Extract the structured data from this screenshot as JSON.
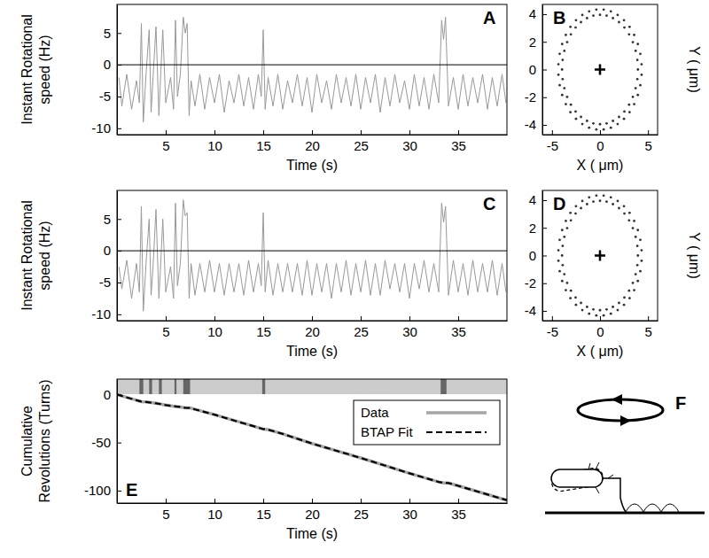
{
  "chart_data": [
    {
      "type": "line",
      "title": "A",
      "xlabel": "Time (s)",
      "ylabel": [
        "Instant Rotational",
        "speed (Hz)"
      ],
      "xlim": [
        0,
        40
      ],
      "xticks": [
        5,
        10,
        15,
        20,
        25,
        30,
        35
      ],
      "ylim": [
        -11,
        9.5
      ],
      "yticks": [
        -10,
        -5,
        0,
        5
      ],
      "hline": 0,
      "x": [
        0.2,
        0.5,
        1,
        1.5,
        2,
        2.3,
        2.5,
        2.7,
        3,
        3.3,
        3.5,
        3.7,
        4,
        4.3,
        4.5,
        4.7,
        5,
        5.5,
        5.8,
        6,
        6.2,
        6.5,
        6.8,
        7,
        7.2,
        7.4,
        7.6,
        8,
        8.5,
        9,
        9.5,
        10,
        10.5,
        11,
        11.5,
        12,
        12.5,
        13,
        13.5,
        14,
        14.5,
        14.8,
        15,
        15.2,
        15.5,
        16,
        16.5,
        17,
        17.5,
        18,
        18.5,
        19,
        19.5,
        20,
        20.5,
        21,
        21.5,
        22,
        22.5,
        23,
        23.5,
        24,
        24.5,
        25,
        25.5,
        26,
        26.5,
        27,
        27.5,
        28,
        28.5,
        29,
        29.5,
        30,
        30.5,
        31,
        31.5,
        32,
        32.5,
        33,
        33.3,
        33.5,
        33.7,
        34,
        34.5,
        35,
        35.5,
        36,
        36.5,
        37,
        37.5,
        38,
        38.5,
        39,
        39.5,
        39.9
      ],
      "series": [
        {
          "color": "#999999",
          "values": [
            -2,
            -6.5,
            -1.5,
            -7,
            -2.5,
            -6,
            6.5,
            -9,
            -1,
            5.5,
            -7.5,
            -2,
            6,
            -8,
            -1,
            5.5,
            -6,
            -2,
            -7,
            7,
            -5,
            -1.5,
            7.5,
            5,
            6.5,
            -8,
            -2.5,
            -6.5,
            -1.5,
            -7,
            -2,
            -6,
            -1.5,
            -7.5,
            -2.5,
            -6,
            -1.5,
            -6.5,
            -2,
            -7,
            -1.5,
            -5,
            5.5,
            -7,
            -2,
            -6.5,
            -1.5,
            -7,
            -2.5,
            -6,
            -1.5,
            -6.5,
            -2,
            -7.5,
            -1.5,
            -6,
            -2.5,
            -7,
            -1.5,
            -6,
            -2,
            -6.5,
            -1.5,
            -7,
            -2,
            -6,
            -1.5,
            -7.5,
            -2,
            -6.5,
            -1.5,
            -6,
            -2.5,
            -7,
            -1.5,
            -6.5,
            -2,
            -7,
            -1.5,
            -6,
            7,
            4,
            7.5,
            -6.5,
            -2,
            -7,
            -1.5,
            -6.5,
            -2,
            -6,
            -1.5,
            -7,
            -2,
            -6.5,
            -1.5,
            -6
          ]
        }
      ]
    },
    {
      "type": "scatter",
      "title": "B",
      "xlabel": "X ( μm)",
      "ylabel": "Y ( μm)",
      "marker": "dot",
      "color": "#333333",
      "xlim": [
        -6,
        6
      ],
      "xticks": [
        -5,
        0,
        5
      ],
      "ylim": [
        -4.7,
        4.7
      ],
      "yticks": [
        -4,
        -2,
        0,
        2,
        4
      ],
      "center": [
        0,
        0
      ],
      "x": [
        3.95,
        3.89,
        3.71,
        3.42,
        3.03,
        2.54,
        1.98,
        1.35,
        0.69,
        0,
        -0.69,
        -1.35,
        -1.98,
        -2.54,
        -3.03,
        -3.42,
        -3.71,
        -3.89,
        -3.95,
        -3.89,
        -3.71,
        -3.42,
        -3.03,
        -2.54,
        -1.98,
        -1.35,
        -0.69,
        0,
        0.69,
        1.35,
        1.98,
        2.54,
        3.03,
        3.42,
        3.71,
        3.89,
        4.33,
        4.2,
        3.94,
        3.56,
        3.08,
        2.5,
        1.84,
        1.13,
        0.38,
        -0.38,
        -1.13,
        -1.84,
        -2.5,
        -3.08,
        -3.56,
        -3.94,
        -4.2,
        -4.33,
        -4.33,
        -4.2,
        -3.94,
        -3.56,
        -3.08,
        -2.5,
        -1.84,
        -1.13,
        -0.38,
        0.38,
        1.13,
        1.84,
        2.5,
        3.08,
        3.56,
        3.94,
        4.2,
        4.33
      ],
      "values": [
        0,
        0.69,
        1.35,
        1.98,
        2.54,
        3.03,
        3.42,
        3.71,
        3.89,
        3.95,
        3.89,
        3.71,
        3.42,
        3.03,
        2.54,
        1.98,
        1.35,
        0.69,
        0,
        -0.69,
        -1.35,
        -1.98,
        -2.54,
        -3.03,
        -3.42,
        -3.71,
        -3.89,
        -3.95,
        -3.89,
        -3.71,
        -3.42,
        -3.03,
        -2.54,
        -1.98,
        -1.35,
        -0.69,
        0.38,
        1.13,
        1.84,
        2.5,
        3.08,
        3.56,
        3.94,
        4.2,
        4.33,
        4.33,
        4.2,
        3.94,
        3.56,
        3.08,
        2.5,
        1.84,
        1.13,
        0.38,
        -0.38,
        -1.13,
        -1.84,
        -2.5,
        -3.08,
        -3.56,
        -3.94,
        -4.2,
        -4.33,
        -4.33,
        -4.2,
        -3.94,
        -3.56,
        -3.08,
        -2.5,
        -1.84,
        -1.13,
        -0.38
      ]
    },
    {
      "type": "line",
      "title": "C",
      "xlabel": "Time (s)",
      "ylabel": [
        "Instant Rotational",
        "speed (Hz)"
      ],
      "xlim": [
        0,
        40
      ],
      "xticks": [
        5,
        10,
        15,
        20,
        25,
        30,
        35
      ],
      "ylim": [
        -11,
        9.5
      ],
      "yticks": [
        -10,
        -5,
        0,
        5
      ],
      "hline": 0,
      "x": [
        0.2,
        0.5,
        1,
        1.5,
        2,
        2.3,
        2.5,
        2.7,
        3,
        3.3,
        3.5,
        3.7,
        4,
        4.3,
        4.5,
        4.7,
        5,
        5.5,
        5.8,
        6,
        6.2,
        6.5,
        6.8,
        7,
        7.2,
        7.4,
        7.6,
        8,
        8.5,
        9,
        9.5,
        10,
        10.5,
        11,
        11.5,
        12,
        12.5,
        13,
        13.5,
        14,
        14.5,
        14.8,
        15,
        15.2,
        15.5,
        16,
        16.5,
        17,
        17.5,
        18,
        18.5,
        19,
        19.5,
        20,
        20.5,
        21,
        21.5,
        22,
        22.5,
        23,
        23.5,
        24,
        24.5,
        25,
        25.5,
        26,
        26.5,
        27,
        27.5,
        28,
        28.5,
        29,
        29.5,
        30,
        30.5,
        31,
        31.5,
        32,
        32.5,
        33,
        33.3,
        33.5,
        33.7,
        34,
        34.5,
        35,
        35.5,
        36,
        36.5,
        37,
        37.5,
        38,
        38.5,
        39,
        39.5,
        39.9
      ],
      "series": [
        {
          "color": "#999999",
          "values": [
            -2.5,
            -6,
            -1.5,
            -7.5,
            -2,
            -6.5,
            7,
            -9.5,
            -1.5,
            5,
            -7,
            -2.5,
            6.5,
            -7.5,
            -1.5,
            5,
            -6.5,
            -2.5,
            -7.5,
            7.5,
            -5.5,
            -2,
            8,
            5.5,
            6,
            -7.5,
            -2,
            -7,
            -2,
            -6.5,
            -1.5,
            -6.5,
            -2,
            -7,
            -2,
            -6.5,
            -2,
            -7,
            -1.5,
            -6.5,
            -2,
            -5.5,
            6,
            -6.5,
            -1.5,
            -7,
            -2,
            -6.5,
            -2,
            -6.5,
            -2,
            -7,
            -1.5,
            -7,
            -2,
            -6.5,
            -2,
            -7.5,
            -2,
            -6.5,
            -1.5,
            -7,
            -2,
            -6.5,
            -1.5,
            -7,
            -2,
            -7,
            -1.5,
            -6,
            -2,
            -6.5,
            -2,
            -7.5,
            -2,
            -6,
            -1.5,
            -6.5,
            -2,
            -6.5,
            7.5,
            4.5,
            7,
            -7,
            -1.5,
            -6.5,
            -2,
            -7,
            -1.5,
            -6.5,
            -2,
            -6.5,
            -1.5,
            -7,
            -2,
            -6.5
          ]
        }
      ]
    },
    {
      "type": "scatter",
      "title": "D",
      "xlabel": "X ( μm)",
      "ylabel": "Y ( μm)",
      "marker": "dot",
      "color": "#333333",
      "xlim": [
        -6,
        6
      ],
      "xticks": [
        -5,
        0,
        5
      ],
      "ylim": [
        -4.7,
        4.7
      ],
      "yticks": [
        -4,
        -2,
        0,
        2,
        4
      ],
      "center": [
        0,
        0
      ],
      "x": [
        3.95,
        3.89,
        3.71,
        3.42,
        3.03,
        2.54,
        1.98,
        1.35,
        0.69,
        0,
        -0.69,
        -1.35,
        -1.98,
        -2.54,
        -3.03,
        -3.42,
        -3.71,
        -3.89,
        -3.95,
        -3.89,
        -3.71,
        -3.42,
        -3.03,
        -2.54,
        -1.98,
        -1.35,
        -0.69,
        0,
        0.69,
        1.35,
        1.98,
        2.54,
        3.03,
        3.42,
        3.71,
        3.89,
        4.33,
        4.2,
        3.94,
        3.56,
        3.08,
        2.5,
        1.84,
        1.13,
        0.38,
        -0.38,
        -1.13,
        -1.84,
        -2.5,
        -3.08,
        -3.56,
        -3.94,
        -4.2,
        -4.33,
        -4.33,
        -4.2,
        -3.94,
        -3.56,
        -3.08,
        -2.5,
        -1.84,
        -1.13,
        -0.38,
        0.38,
        1.13,
        1.84,
        2.5,
        3.08,
        3.56,
        3.94,
        4.2,
        4.33
      ],
      "values": [
        0,
        0.69,
        1.35,
        1.98,
        2.54,
        3.03,
        3.42,
        3.71,
        3.89,
        3.95,
        3.89,
        3.71,
        3.42,
        3.03,
        2.54,
        1.98,
        1.35,
        0.69,
        0,
        -0.69,
        -1.35,
        -1.98,
        -2.54,
        -3.03,
        -3.42,
        -3.71,
        -3.89,
        -3.95,
        -3.89,
        -3.71,
        -3.42,
        -3.03,
        -2.54,
        -1.98,
        -1.35,
        -0.69,
        0.38,
        1.13,
        1.84,
        2.5,
        3.08,
        3.56,
        3.94,
        4.2,
        4.33,
        4.33,
        4.2,
        3.94,
        3.56,
        3.08,
        2.5,
        1.84,
        1.13,
        0.38,
        -0.38,
        -1.13,
        -1.84,
        -2.5,
        -3.08,
        -3.56,
        -3.94,
        -4.2,
        -4.33,
        -4.33,
        -4.2,
        -3.94,
        -3.56,
        -3.08,
        -2.5,
        -1.84,
        -1.13,
        -0.38
      ]
    },
    {
      "type": "line",
      "title": "E",
      "xlabel": "Time (s)",
      "ylabel": [
        "Cumulative",
        "Revolutions (Turns)"
      ],
      "legend": "upper right",
      "xlim": [
        0,
        40
      ],
      "xticks": [
        5,
        10,
        15,
        20,
        25,
        30,
        35
      ],
      "ylim": [
        -113,
        16
      ],
      "yticks": [
        -100,
        -50,
        0
      ],
      "intervals": [
        [
          2.3,
          2.7
        ],
        [
          3.3,
          3.6
        ],
        [
          4.3,
          4.6
        ],
        [
          5.9,
          6.1
        ],
        [
          6.8,
          7.5
        ],
        [
          14.9,
          15.2
        ],
        [
          33.2,
          33.8
        ]
      ],
      "x": [
        0,
        1,
        2,
        2.5,
        3,
        3.5,
        4,
        4.5,
        5,
        6,
        6.5,
        7,
        7.5,
        8,
        10,
        12,
        14,
        15,
        15.5,
        17,
        20,
        25,
        30,
        33,
        33.5,
        34,
        35,
        37,
        40
      ],
      "series": [
        {
          "name": "Data",
          "color": "#a6a6a6",
          "line_style": "solid",
          "values": [
            0,
            -3,
            -6,
            -7.5,
            -7.8,
            -8.5,
            -9.2,
            -10,
            -11,
            -12.5,
            -13,
            -14,
            -14,
            -15.5,
            -21,
            -27,
            -33,
            -36,
            -36.5,
            -41,
            -51,
            -66,
            -82,
            -91,
            -92,
            -92,
            -95,
            -101,
            -110
          ]
        },
        {
          "name": "BTAP Fit",
          "color": "#000000",
          "line_style": "dashed",
          "values": [
            0,
            -3.1,
            -6,
            -7.4,
            -7.9,
            -8.5,
            -9.3,
            -10,
            -11.1,
            -12.4,
            -13,
            -13.9,
            -14.1,
            -15.5,
            -21,
            -27.1,
            -33,
            -36,
            -36.6,
            -41,
            -51,
            -66,
            -82,
            -91,
            -92,
            -92.1,
            -95,
            -101,
            -110
          ]
        }
      ]
    }
  ],
  "diagram": {
    "title": "F"
  }
}
